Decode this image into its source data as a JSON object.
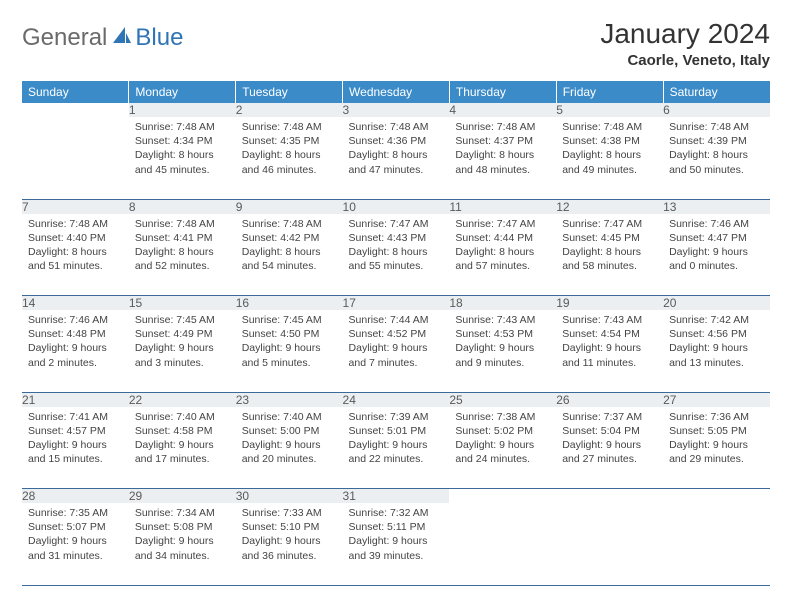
{
  "logo": {
    "text1": "General",
    "text2": "Blue",
    "color1": "#6a6a6a",
    "color2": "#2f74b5"
  },
  "title": "January 2024",
  "location": "Caorle, Veneto, Italy",
  "colors": {
    "header_bg": "#3b8bc8",
    "header_fg": "#ffffff",
    "daynum_bg": "#eceff1",
    "cell_border": "#3b6a9a"
  },
  "days_of_week": [
    "Sunday",
    "Monday",
    "Tuesday",
    "Wednesday",
    "Thursday",
    "Friday",
    "Saturday"
  ],
  "weeks": [
    [
      null,
      {
        "n": 1,
        "sr": "7:48 AM",
        "ss": "4:34 PM",
        "dh": 8,
        "dm": 45
      },
      {
        "n": 2,
        "sr": "7:48 AM",
        "ss": "4:35 PM",
        "dh": 8,
        "dm": 46
      },
      {
        "n": 3,
        "sr": "7:48 AM",
        "ss": "4:36 PM",
        "dh": 8,
        "dm": 47
      },
      {
        "n": 4,
        "sr": "7:48 AM",
        "ss": "4:37 PM",
        "dh": 8,
        "dm": 48
      },
      {
        "n": 5,
        "sr": "7:48 AM",
        "ss": "4:38 PM",
        "dh": 8,
        "dm": 49
      },
      {
        "n": 6,
        "sr": "7:48 AM",
        "ss": "4:39 PM",
        "dh": 8,
        "dm": 50
      }
    ],
    [
      {
        "n": 7,
        "sr": "7:48 AM",
        "ss": "4:40 PM",
        "dh": 8,
        "dm": 51
      },
      {
        "n": 8,
        "sr": "7:48 AM",
        "ss": "4:41 PM",
        "dh": 8,
        "dm": 52
      },
      {
        "n": 9,
        "sr": "7:48 AM",
        "ss": "4:42 PM",
        "dh": 8,
        "dm": 54
      },
      {
        "n": 10,
        "sr": "7:47 AM",
        "ss": "4:43 PM",
        "dh": 8,
        "dm": 55
      },
      {
        "n": 11,
        "sr": "7:47 AM",
        "ss": "4:44 PM",
        "dh": 8,
        "dm": 57
      },
      {
        "n": 12,
        "sr": "7:47 AM",
        "ss": "4:45 PM",
        "dh": 8,
        "dm": 58
      },
      {
        "n": 13,
        "sr": "7:46 AM",
        "ss": "4:47 PM",
        "dh": 9,
        "dm": 0
      }
    ],
    [
      {
        "n": 14,
        "sr": "7:46 AM",
        "ss": "4:48 PM",
        "dh": 9,
        "dm": 2
      },
      {
        "n": 15,
        "sr": "7:45 AM",
        "ss": "4:49 PM",
        "dh": 9,
        "dm": 3
      },
      {
        "n": 16,
        "sr": "7:45 AM",
        "ss": "4:50 PM",
        "dh": 9,
        "dm": 5
      },
      {
        "n": 17,
        "sr": "7:44 AM",
        "ss": "4:52 PM",
        "dh": 9,
        "dm": 7
      },
      {
        "n": 18,
        "sr": "7:43 AM",
        "ss": "4:53 PM",
        "dh": 9,
        "dm": 9
      },
      {
        "n": 19,
        "sr": "7:43 AM",
        "ss": "4:54 PM",
        "dh": 9,
        "dm": 11
      },
      {
        "n": 20,
        "sr": "7:42 AM",
        "ss": "4:56 PM",
        "dh": 9,
        "dm": 13
      }
    ],
    [
      {
        "n": 21,
        "sr": "7:41 AM",
        "ss": "4:57 PM",
        "dh": 9,
        "dm": 15
      },
      {
        "n": 22,
        "sr": "7:40 AM",
        "ss": "4:58 PM",
        "dh": 9,
        "dm": 17
      },
      {
        "n": 23,
        "sr": "7:40 AM",
        "ss": "5:00 PM",
        "dh": 9,
        "dm": 20
      },
      {
        "n": 24,
        "sr": "7:39 AM",
        "ss": "5:01 PM",
        "dh": 9,
        "dm": 22
      },
      {
        "n": 25,
        "sr": "7:38 AM",
        "ss": "5:02 PM",
        "dh": 9,
        "dm": 24
      },
      {
        "n": 26,
        "sr": "7:37 AM",
        "ss": "5:04 PM",
        "dh": 9,
        "dm": 27
      },
      {
        "n": 27,
        "sr": "7:36 AM",
        "ss": "5:05 PM",
        "dh": 9,
        "dm": 29
      }
    ],
    [
      {
        "n": 28,
        "sr": "7:35 AM",
        "ss": "5:07 PM",
        "dh": 9,
        "dm": 31
      },
      {
        "n": 29,
        "sr": "7:34 AM",
        "ss": "5:08 PM",
        "dh": 9,
        "dm": 34
      },
      {
        "n": 30,
        "sr": "7:33 AM",
        "ss": "5:10 PM",
        "dh": 9,
        "dm": 36
      },
      {
        "n": 31,
        "sr": "7:32 AM",
        "ss": "5:11 PM",
        "dh": 9,
        "dm": 39
      },
      null,
      null,
      null
    ]
  ],
  "labels": {
    "sunrise": "Sunrise:",
    "sunset": "Sunset:",
    "daylight": "Daylight:",
    "hours": "hours",
    "and": "and",
    "minutes": "minutes."
  }
}
